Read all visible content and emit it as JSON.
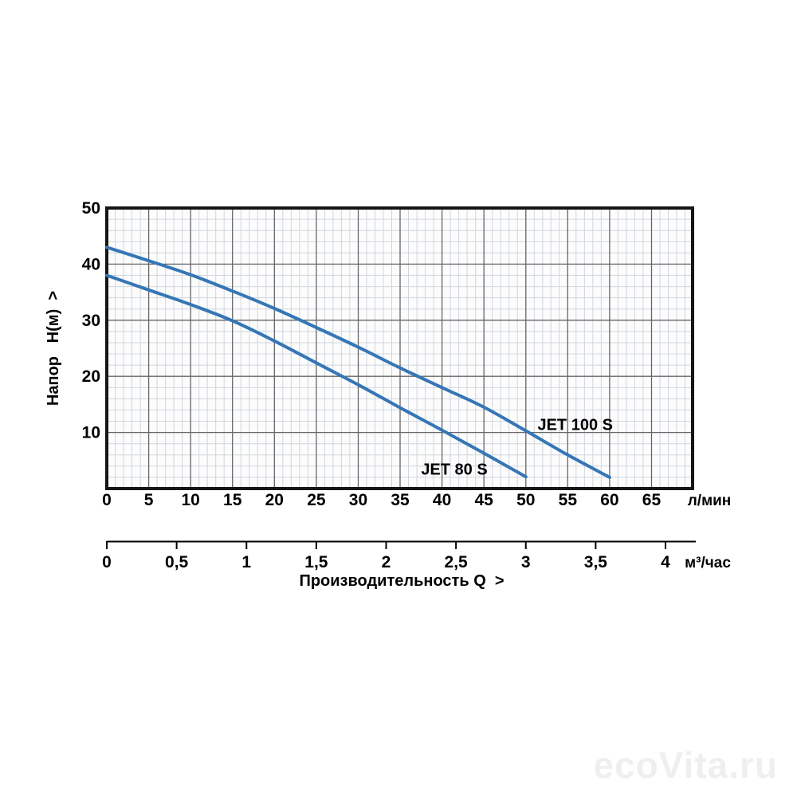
{
  "watermark": "ecoVita.ru",
  "chart_data": {
    "type": "line",
    "title": "",
    "xlabel": "Производительность Q  >",
    "x_axis": {
      "unit": "л/мин",
      "min": 0,
      "max": 69.9,
      "major_step": 5,
      "minor_step": 1,
      "ticks": [
        0,
        5,
        10,
        15,
        20,
        25,
        30,
        35,
        40,
        45,
        50,
        55,
        60,
        65
      ]
    },
    "x_axis_secondary": {
      "unit": "м³/час",
      "tick_values": [
        0,
        0.5,
        1,
        1.5,
        2,
        2.5,
        3,
        3.5,
        4
      ],
      "tick_labels": [
        "0",
        "0,5",
        "1",
        "1,5",
        "2",
        "2,5",
        "3",
        "3,5",
        "4"
      ]
    },
    "y_axis": {
      "label": "Напор   Н(м)  >",
      "min": 0,
      "max": 50,
      "major_step": 10,
      "minor_step": 2,
      "ticks": [
        50,
        40,
        30,
        20,
        10
      ]
    },
    "series": [
      {
        "name": "JET 80 S",
        "x": [
          0,
          5,
          10,
          15,
          20,
          25,
          30,
          35,
          40,
          45,
          50
        ],
        "y": [
          38,
          35.4,
          32.8,
          29.9,
          26.3,
          22.4,
          18.5,
          14.4,
          10.4,
          6.3,
          2.1
        ],
        "label_q": 37.5,
        "label_h": 3.5
      },
      {
        "name": "JET 100 S",
        "x": [
          0,
          5,
          10,
          15,
          20,
          25,
          30,
          35,
          40,
          45,
          50,
          55,
          60
        ],
        "y": [
          43,
          40.6,
          38.1,
          35.2,
          32.1,
          28.7,
          25.2,
          21.5,
          18,
          14.5,
          10.3,
          6,
          2
        ],
        "label_q": 51.4,
        "label_h": 11.4
      }
    ],
    "colors": {
      "curve": "#3576b6",
      "grid_minor": "#cfd6de",
      "grid_major": "#666666",
      "border": "#151515",
      "text": "#000000",
      "plot_bg": "#fcfcfc"
    },
    "grid": {
      "minor": true,
      "major": true
    },
    "legend_position": "on-curve"
  }
}
